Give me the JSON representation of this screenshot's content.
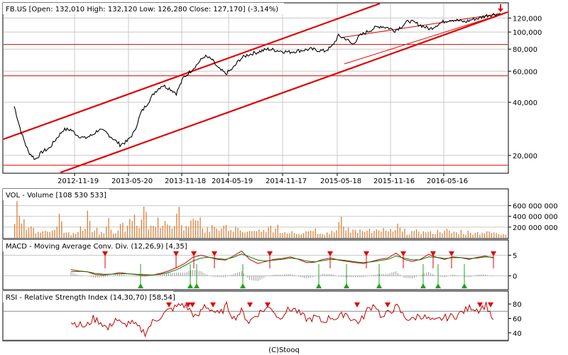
{
  "footer": "(C)Stooq",
  "colors": {
    "price_line": "#000000",
    "trend": "#e00000",
    "volume": "#d8803a",
    "macd": "#d00000",
    "signal": "#008000",
    "hist": "#808080",
    "rsi": "#c00000",
    "grid": "#c8c8c8",
    "up_marker": "#20a020",
    "down_marker": "#e00000"
  },
  "chart_data": [
    {
      "type": "line",
      "panel": "price",
      "title": "FB.US [Open: 132,010  High: 132,120  Low: 126,280  Close: 127,170] (-3,14%)",
      "scale": "log",
      "ylim": [
        16,
        145
      ],
      "yticks": [
        20,
        40,
        60,
        80,
        100,
        120
      ],
      "yticklabels": [
        "20,000",
        "40,000",
        "60,000",
        "80,000",
        "100,000",
        "120,000"
      ],
      "xticklabels": [
        "2012-11-19",
        "2013-05-20",
        "2013-11-18",
        "2014-05-19",
        "2014-11-17",
        "2015-05-18",
        "2015-11-16",
        "2016-05-16"
      ],
      "x_start": "2012-05",
      "x_end": "2016-10",
      "series": [
        {
          "values": [
            38,
            27,
            21,
            19,
            21,
            22,
            25,
            28,
            28,
            26,
            25,
            26,
            28,
            27,
            25,
            23,
            24,
            27,
            35,
            40,
            46,
            50,
            48,
            45,
            55,
            60,
            66,
            73,
            70,
            62,
            58,
            62,
            70,
            74,
            76,
            78,
            80,
            79,
            78,
            77,
            78,
            79,
            80,
            79,
            78,
            82,
            95,
            92,
            85,
            95,
            100,
            105,
            108,
            106,
            102,
            108,
            116,
            112,
            108,
            104,
            110,
            115,
            118,
            116,
            114,
            118,
            120,
            124,
            126,
            127
          ]
        }
      ],
      "horizontal_lines": [
        17.6,
        56.5,
        85
      ],
      "annotation": "down arrow at last bar"
    },
    {
      "type": "bar",
      "panel": "volume",
      "title": "VOL - Volume [108 530 533]",
      "ylim": [
        0,
        700000000
      ],
      "yticks": [
        200000000,
        400000000,
        600000000
      ],
      "yticklabels": [
        "200 000 000",
        "400 000 000",
        "600 000 000"
      ],
      "values": [
        580,
        300,
        180,
        140,
        120,
        160,
        380,
        120,
        100,
        220,
        380,
        180,
        100,
        300,
        150,
        260,
        500,
        400,
        580,
        300,
        400,
        280,
        220,
        520,
        270,
        350,
        300,
        180,
        250,
        220,
        230,
        170,
        150,
        130,
        160,
        120,
        220,
        180,
        120,
        150,
        110,
        160,
        200,
        130,
        100,
        170,
        300,
        180,
        150,
        210,
        160,
        140,
        170,
        130,
        210,
        130,
        120,
        150,
        130,
        120,
        160,
        140,
        120,
        130,
        110,
        130,
        120,
        120,
        110,
        108
      ]
    },
    {
      "type": "line",
      "panel": "macd",
      "title": "MACD - Moving Average Conv. Div. (12,26,9) [4,35]",
      "ylim": [
        -3,
        8
      ],
      "yticks": [
        0,
        5
      ],
      "yticklabels": [
        "0",
        "5"
      ],
      "series": [
        {
          "name": "macd",
          "values": [
            1.5,
            1.2,
            1.0,
            0.3,
            0.2,
            0.4,
            0.8,
            0.5,
            0.3,
            0.1,
            0.2,
            0.6,
            1.2,
            2.0,
            3.0,
            4.5,
            5.0,
            4.5,
            4.0,
            3.8,
            4.8,
            6.0,
            4.0,
            3.0,
            3.5,
            4.0,
            4.2,
            4.6,
            4.0,
            3.2,
            3.3,
            4.0,
            4.3,
            3.8,
            3.5,
            3.2,
            3.0,
            3.5,
            4.0,
            4.3,
            5.5,
            4.0,
            3.5,
            4.0,
            5.2,
            4.5,
            4.0,
            4.6,
            4.4,
            4.0,
            4.5,
            4.8,
            4.35
          ]
        },
        {
          "name": "signal",
          "values": [
            1.0,
            1.1,
            1.0,
            0.6,
            0.4,
            0.4,
            0.5,
            0.5,
            0.4,
            0.3,
            0.2,
            0.4,
            0.8,
            1.5,
            2.5,
            3.6,
            4.3,
            4.5,
            4.2,
            4.0,
            4.5,
            5.3,
            4.6,
            3.8,
            3.6,
            3.8,
            4.0,
            4.3,
            4.1,
            3.6,
            3.4,
            3.7,
            4.0,
            3.9,
            3.7,
            3.4,
            3.2,
            3.4,
            3.7,
            4.0,
            4.8,
            4.3,
            3.9,
            3.9,
            4.6,
            4.5,
            4.2,
            4.4,
            4.4,
            4.2,
            4.3,
            4.6,
            4.5
          ]
        }
      ],
      "annotation": "red sell and green buy markers at signal crossovers"
    },
    {
      "type": "line",
      "panel": "rsi",
      "title": "RSI - Relative Strength Index (14,30,70) [58,54]",
      "ylim": [
        30,
        90
      ],
      "yticks": [
        40,
        60,
        80
      ],
      "yticklabels": [
        "40",
        "60",
        "80"
      ],
      "hlines": [
        30,
        70
      ],
      "series": [
        {
          "values": [
            55,
            52,
            48,
            60,
            55,
            45,
            60,
            50,
            55,
            48,
            40,
            55,
            62,
            70,
            75,
            80,
            72,
            60,
            78,
            72,
            65,
            78,
            60,
            70,
            55,
            65,
            72,
            76,
            60,
            70,
            74,
            65,
            58,
            62,
            55,
            62,
            60,
            68,
            58,
            55,
            72,
            80,
            60,
            70,
            76,
            62,
            58,
            65,
            60,
            55,
            60,
            62,
            64,
            70,
            76,
            72,
            79,
            58.54
          ]
        }
      ],
      "annotation": "red overbought markers above 70"
    }
  ]
}
